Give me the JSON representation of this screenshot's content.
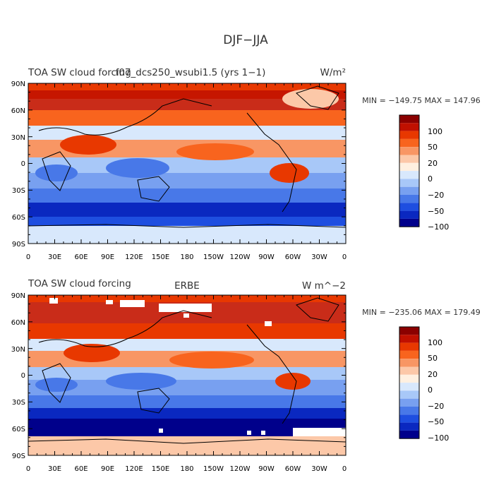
{
  "figure": {
    "title": "DJF−JJA"
  },
  "panels": [
    {
      "left_title": "TOA SW cloud forcing",
      "center_title": "f07_dcs250_wsubi1.5 (yrs 1−1)",
      "units": "W/m²",
      "stats": "MIN = −149.75  MAX = 147.96",
      "lat_ticks": [
        "90N",
        "60N",
        "30N",
        "0",
        "30S",
        "60S",
        "90S"
      ],
      "lon_ticks": [
        "0",
        "30E",
        "60E",
        "90E",
        "120E",
        "150E",
        "180",
        "150W",
        "120W",
        "90W",
        "60W",
        "30W",
        "0"
      ],
      "colorbar_labels": [
        "100",
        "50",
        "20",
        "0",
        "−20",
        "−50",
        "−100"
      ]
    },
    {
      "left_title": "TOA SW cloud forcing",
      "center_title": "ERBE",
      "units": "W m^−2",
      "stats": "MIN = −235.06  MAX = 179.49",
      "lat_ticks": [
        "90N",
        "60N",
        "30N",
        "0",
        "30S",
        "60S",
        "90S"
      ],
      "lon_ticks": [
        "0",
        "30E",
        "60E",
        "90E",
        "120E",
        "150E",
        "180",
        "150W",
        "120W",
        "90W",
        "60W",
        "30W",
        "0"
      ],
      "colorbar_labels": [
        "100",
        "50",
        "20",
        "0",
        "−20",
        "−50",
        "−100"
      ]
    }
  ],
  "colorbar_colors": [
    "#8b0000",
    "#c01000",
    "#e83800",
    "#f8641e",
    "#f89664",
    "#fcc8a8",
    "#fff0e0",
    "#d8e8fc",
    "#a8c8f8",
    "#78a0f0",
    "#4878e8",
    "#1e4ee0",
    "#0a28c0",
    "#00008b"
  ],
  "chart_data": {
    "type": "heatmap",
    "title": "DJF−JJA",
    "levels": [
      -100,
      -50,
      -20,
      0,
      20,
      50,
      100
    ],
    "panels": [
      {
        "center_title": "f07_dcs250_wsubi1.5 (yrs 1−1)",
        "min": -149.75,
        "max": 147.96,
        "xlim": [
          0,
          360
        ],
        "ylim": [
          -90,
          90
        ]
      },
      {
        "center_title": "ERBE",
        "min": -235.06,
        "max": 179.49,
        "xlim": [
          0,
          360
        ],
        "ylim": [
          -90,
          90
        ]
      }
    ]
  }
}
